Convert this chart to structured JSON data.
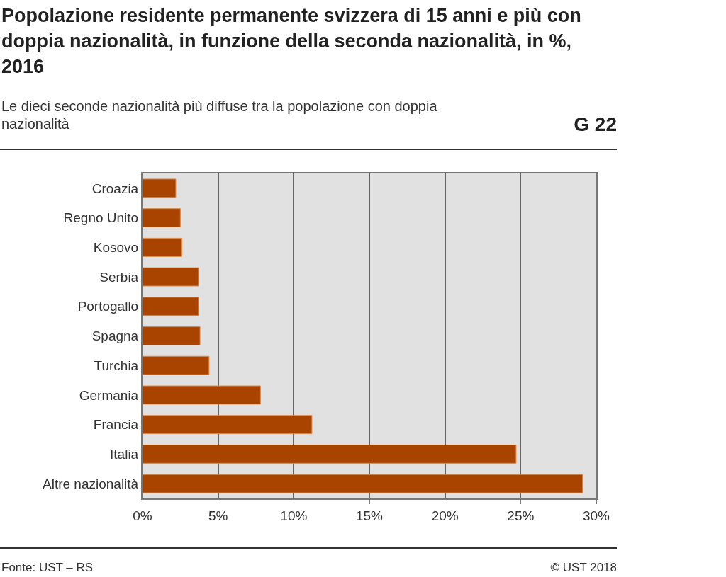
{
  "chart_data": {
    "type": "bar",
    "orientation": "horizontal",
    "title": "Popolazione residente permanente svizzera di 15 anni e più con doppia nazionalità, in funzione della seconda nazionalità, in %, 2016",
    "subtitle": "Le dieci seconde nazionalità più diffuse tra la popolazione con doppia nazionalità",
    "categories": [
      "Croazia",
      "Regno Unito",
      "Kosovo",
      "Serbia",
      "Portogallo",
      "Spagna",
      "Turchia",
      "Germania",
      "Francia",
      "Italia",
      "Altre nazionalità"
    ],
    "values": [
      2.2,
      2.5,
      2.6,
      3.7,
      3.7,
      3.8,
      4.4,
      7.8,
      11.2,
      24.7,
      29.1
    ],
    "color": "#a84300",
    "xlim": [
      0,
      30
    ],
    "xticks": [
      {
        "value": 0,
        "label": "0%"
      },
      {
        "value": 5,
        "label": "5%"
      },
      {
        "value": 10,
        "label": "10%"
      },
      {
        "value": 15,
        "label": "15%"
      },
      {
        "value": 20,
        "label": "20%"
      },
      {
        "value": 25,
        "label": "25%"
      },
      {
        "value": 30,
        "label": "30%"
      }
    ],
    "grid": "x",
    "legend": false,
    "annotations": [
      "G 22",
      "Fonte: UST – RS",
      "© UST 2018"
    ]
  }
}
